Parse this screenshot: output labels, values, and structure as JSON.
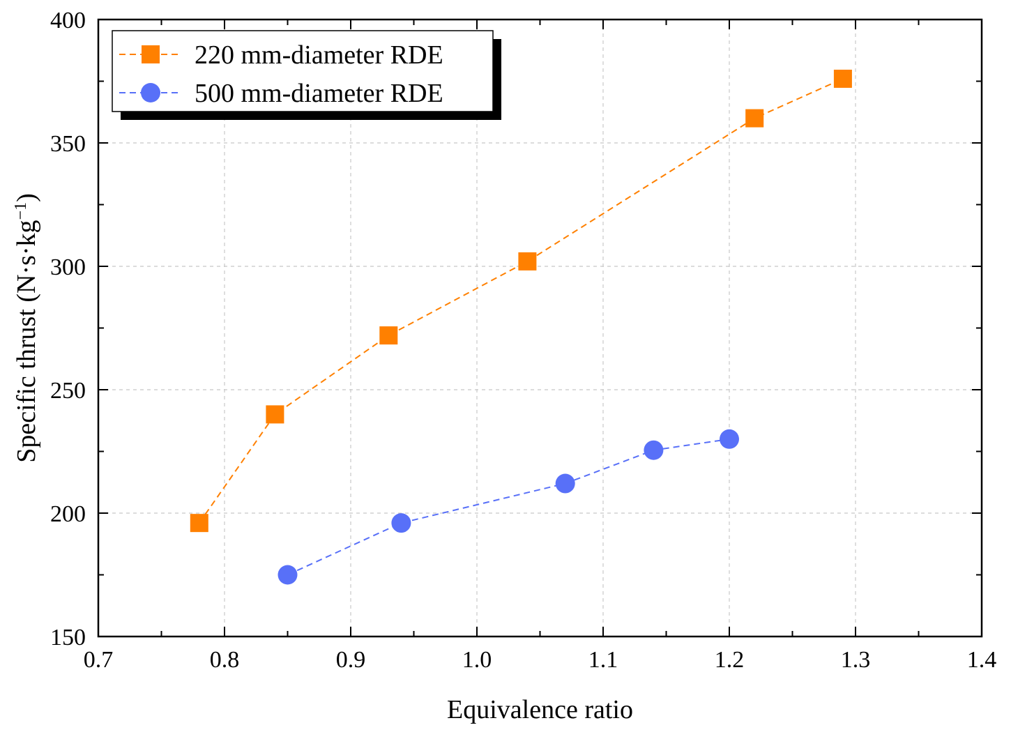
{
  "chart_data": {
    "type": "line",
    "title": "",
    "xlabel": "Equivalence ratio",
    "ylabel": {
      "main": "Specific thrust (N·s·kg",
      "superscript": "−1",
      "close": ")"
    },
    "xlim": [
      0.7,
      1.4
    ],
    "ylim": [
      150,
      400
    ],
    "xticks": [
      0.7,
      0.8,
      0.9,
      1.0,
      1.1,
      1.2,
      1.3,
      1.4
    ],
    "xtick_labels": [
      "0.7",
      "0.8",
      "0.9",
      "1.0",
      "1.1",
      "1.2",
      "1.3",
      "1.4"
    ],
    "yticks": [
      150,
      200,
      250,
      300,
      350,
      400
    ],
    "ytick_labels": [
      "150",
      "200",
      "250",
      "300",
      "350",
      "400"
    ],
    "grid": true,
    "legend_position": "top-left",
    "series": [
      {
        "name": "220 mm-diameter RDE",
        "marker": "square",
        "color": "#FF8000",
        "x": [
          0.78,
          0.84,
          0.93,
          1.04,
          1.22,
          1.29
        ],
        "y": [
          196,
          240,
          272,
          302,
          360,
          376
        ]
      },
      {
        "name": "500 mm-diameter RDE",
        "marker": "circle",
        "color": "#5870F8",
        "x": [
          0.85,
          0.94,
          1.07,
          1.14,
          1.2
        ],
        "y": [
          175,
          196,
          212,
          225.5,
          230
        ]
      }
    ]
  }
}
